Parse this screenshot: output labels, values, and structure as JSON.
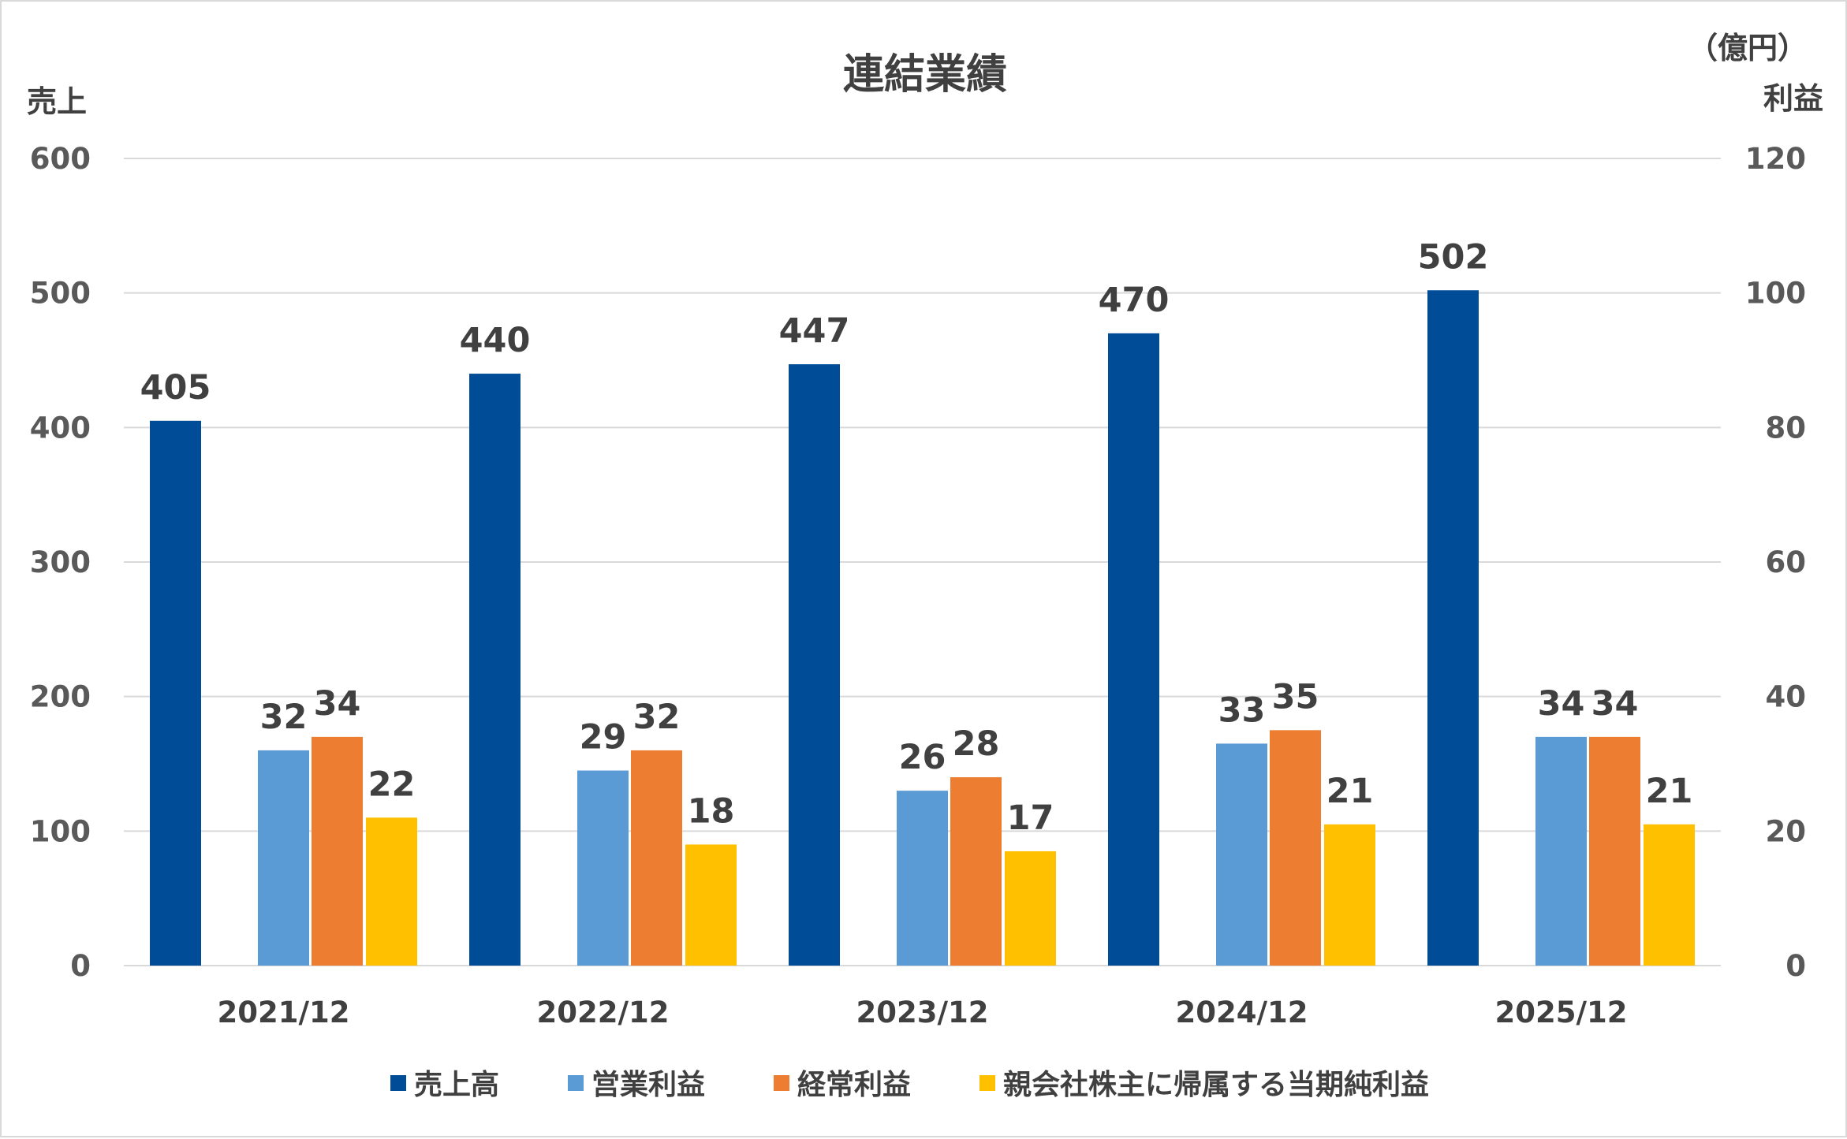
{
  "chart_data": {
    "type": "bar",
    "title": "連結業績",
    "unit": "（億円）",
    "ylabel_left": "売上",
    "ylabel_right": "利益",
    "categories": [
      "2021/12",
      "2022/12",
      "2023/12",
      "2024/12",
      "2025/12"
    ],
    "ylim_left": [
      0,
      600
    ],
    "yticks_left": [
      "0",
      "100",
      "200",
      "300",
      "400",
      "500",
      "600"
    ],
    "ylim_right": [
      0,
      120
    ],
    "yticks_right": [
      "0",
      "20",
      "40",
      "60",
      "80",
      "100",
      "120"
    ],
    "grid": true,
    "legend_position": "bottom",
    "series": [
      {
        "name": "売上高",
        "axis": "left",
        "color": "#004C97",
        "values": [
          405,
          440,
          447,
          470,
          502
        ]
      },
      {
        "name": "営業利益",
        "axis": "right",
        "color": "#5B9BD5",
        "values": [
          32,
          29,
          26,
          33,
          34
        ]
      },
      {
        "name": "経常利益",
        "axis": "right",
        "color": "#ED7D31",
        "values": [
          34,
          32,
          28,
          35,
          34
        ]
      },
      {
        "name": "親会社株主に帰属する当期純利益",
        "axis": "right",
        "color": "#FFC000",
        "values": [
          22,
          18,
          17,
          21,
          21
        ]
      }
    ]
  }
}
